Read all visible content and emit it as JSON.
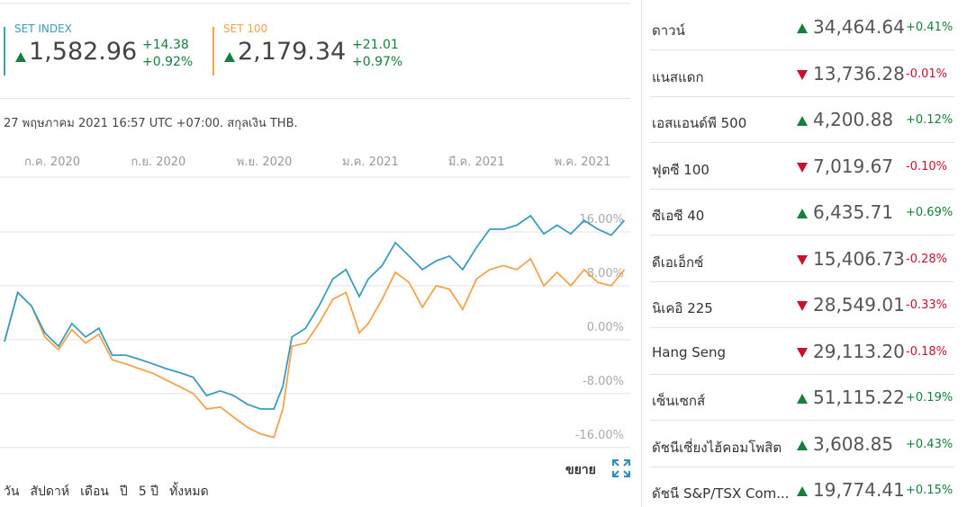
{
  "chart_data": {
    "type": "line",
    "x": [
      0.1,
      0.35,
      0.61,
      0.86,
      1.12,
      1.37,
      1.63,
      1.88,
      2.13,
      2.39,
      2.64,
      2.9,
      3.15,
      3.41,
      3.66,
      3.91,
      4.17,
      4.42,
      4.68,
      4.93,
      5.18,
      5.35,
      5.52,
      5.78,
      6.03,
      6.29,
      6.54,
      6.79,
      6.96,
      7.22,
      7.47,
      7.73,
      7.98,
      8.24,
      8.49,
      8.74,
      9.0,
      9.25,
      9.51,
      9.76,
      10.02,
      10.27,
      10.52,
      10.78,
      11.03,
      11.29,
      11.54,
      11.79
    ],
    "series": [
      {
        "name": "SET INDEX",
        "color": "#3a9dbd",
        "values": [
          -0.3,
          7,
          5,
          1,
          -1,
          2.4,
          0.4,
          1.7,
          -2.3,
          -2.3,
          -2.9,
          -3.6,
          -4.3,
          -4.9,
          -5.6,
          -8.3,
          -7.6,
          -8.3,
          -9.6,
          -10.3,
          -10.3,
          -6.9,
          0.4,
          1.7,
          5,
          9,
          10.4,
          6.4,
          9,
          11,
          14.4,
          12.4,
          10.4,
          11.7,
          12.4,
          10.4,
          13.7,
          16.4,
          16.4,
          17,
          18.4,
          15.7,
          17,
          15.7,
          17.7,
          16.4,
          15.5,
          17.7
        ]
      },
      {
        "name": "SET 100",
        "color": "#f5a34a",
        "values": [
          -0.3,
          7,
          5,
          0.4,
          -1.5,
          1.5,
          -0.5,
          0.8,
          -3,
          -3.6,
          -4.3,
          -5,
          -6,
          -7,
          -8,
          -10.3,
          -10,
          -11.5,
          -13,
          -14,
          -14.5,
          -10.3,
          -1,
          -0.5,
          2.4,
          6,
          7,
          1,
          2.4,
          6,
          10,
          8.5,
          4.8,
          8,
          7.5,
          4.5,
          9,
          10.4,
          11,
          10.4,
          12,
          8,
          10,
          8,
          10.4,
          8.5,
          8,
          10.4
        ]
      }
    ],
    "xlim": [
      0.1,
      11.9
    ],
    "xticks": [
      {
        "value": 1,
        "label": "ก.ค. 2020"
      },
      {
        "value": 3,
        "label": "ก.ย. 2020"
      },
      {
        "value": 5,
        "label": "พ.ย. 2020"
      },
      {
        "value": 7,
        "label": "ม.ค. 2021"
      },
      {
        "value": 9,
        "label": "มี.ค. 2021"
      },
      {
        "value": 11,
        "label": "พ.ค. 2021"
      }
    ],
    "ylim": [
      -16.3,
      24
    ],
    "yticks": [
      {
        "value": 16,
        "label": "16.00%"
      },
      {
        "value": 8,
        "label": "8.00%"
      },
      {
        "value": 0,
        "label": "0.00%"
      },
      {
        "value": -8,
        "label": "-8.00%"
      },
      {
        "value": -16,
        "label": "-16.00%"
      }
    ],
    "grid": true
  },
  "quotes": [
    {
      "value": "1,582.96",
      "change": "+14.38",
      "change_pct": "+0.92%",
      "direction": "up"
    },
    {
      "value": "2,179.34",
      "change": "+21.01",
      "change_pct": "+0.97%",
      "direction": "up"
    }
  ],
  "timestamp": "27 พฤษภาคม 2021 16:57 UTC +07:00. สกุลเงิน THB.",
  "expand": "ขยาย",
  "ranges": [
    "วัน",
    "สัปดาห์",
    "เดือน",
    "ปี",
    "5 ปี",
    "ทั้งหมด"
  ],
  "markets": [
    {
      "name": "ดาวน์",
      "value": "34,464.64",
      "change": "+0.41%",
      "direction": "up"
    },
    {
      "name": "แนสแดก",
      "value": "13,736.28",
      "change": "-0.01%",
      "direction": "down"
    },
    {
      "name": "เอสแอนด์พี 500",
      "value": "4,200.88",
      "change": "+0.12%",
      "direction": "up"
    },
    {
      "name": "ฟุตซี 100",
      "value": "7,019.67",
      "change": "-0.10%",
      "direction": "down"
    },
    {
      "name": "ซีเอซี 40",
      "value": "6,435.71",
      "change": "+0.69%",
      "direction": "up"
    },
    {
      "name": "ดีเอเอ็กซ์",
      "value": "15,406.73",
      "change": "-0.28%",
      "direction": "down"
    },
    {
      "name": "นิเคอิ 225",
      "value": "28,549.01",
      "change": "-0.33%",
      "direction": "down"
    },
    {
      "name": "Hang Seng",
      "value": "29,113.20",
      "change": "-0.18%",
      "direction": "down"
    },
    {
      "name": "เซ็นเซกส์",
      "value": "51,115.22",
      "change": "+0.19%",
      "direction": "up"
    },
    {
      "name": "ดัชนีเซี่ยงไฮ้คอมโพสิต",
      "value": "3,608.85",
      "change": "+0.43%",
      "direction": "up"
    },
    {
      "name": "ดัชนี S&P/TSX Com...",
      "value": "19,774.41",
      "change": "+0.15%",
      "direction": "up"
    }
  ]
}
